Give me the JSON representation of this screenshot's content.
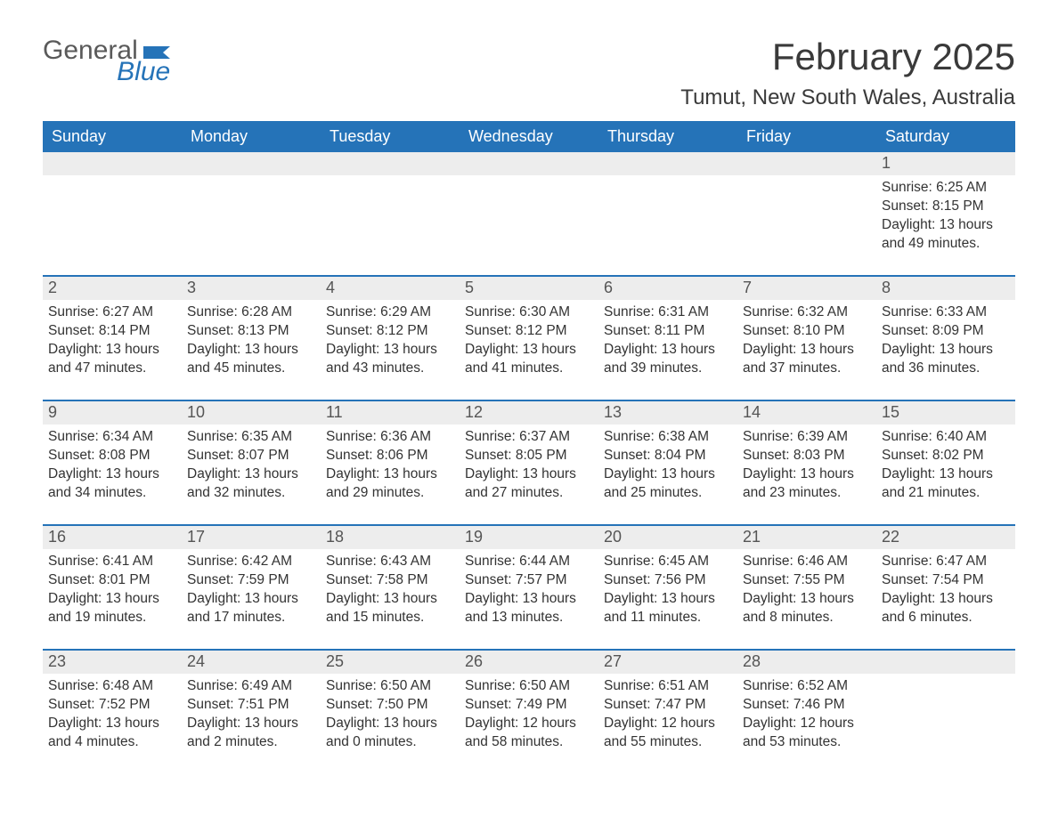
{
  "logo": {
    "text_general": "General",
    "text_blue": "Blue",
    "flag_color": "#2573b8"
  },
  "title": {
    "month": "February 2025",
    "location": "Tumut, New South Wales, Australia"
  },
  "colors": {
    "header_bg": "#2573b8",
    "header_text": "#ffffff",
    "daynum_bg": "#ededed",
    "week_divider": "#2573b8",
    "body_text": "#333333",
    "page_bg": "#ffffff"
  },
  "days_of_week": [
    "Sunday",
    "Monday",
    "Tuesday",
    "Wednesday",
    "Thursday",
    "Friday",
    "Saturday"
  ],
  "weeks": [
    [
      {
        "n": "",
        "sunrise": "",
        "sunset": "",
        "daylight": ""
      },
      {
        "n": "",
        "sunrise": "",
        "sunset": "",
        "daylight": ""
      },
      {
        "n": "",
        "sunrise": "",
        "sunset": "",
        "daylight": ""
      },
      {
        "n": "",
        "sunrise": "",
        "sunset": "",
        "daylight": ""
      },
      {
        "n": "",
        "sunrise": "",
        "sunset": "",
        "daylight": ""
      },
      {
        "n": "",
        "sunrise": "",
        "sunset": "",
        "daylight": ""
      },
      {
        "n": "1",
        "sunrise": "Sunrise: 6:25 AM",
        "sunset": "Sunset: 8:15 PM",
        "daylight": "Daylight: 13 hours and 49 minutes."
      }
    ],
    [
      {
        "n": "2",
        "sunrise": "Sunrise: 6:27 AM",
        "sunset": "Sunset: 8:14 PM",
        "daylight": "Daylight: 13 hours and 47 minutes."
      },
      {
        "n": "3",
        "sunrise": "Sunrise: 6:28 AM",
        "sunset": "Sunset: 8:13 PM",
        "daylight": "Daylight: 13 hours and 45 minutes."
      },
      {
        "n": "4",
        "sunrise": "Sunrise: 6:29 AM",
        "sunset": "Sunset: 8:12 PM",
        "daylight": "Daylight: 13 hours and 43 minutes."
      },
      {
        "n": "5",
        "sunrise": "Sunrise: 6:30 AM",
        "sunset": "Sunset: 8:12 PM",
        "daylight": "Daylight: 13 hours and 41 minutes."
      },
      {
        "n": "6",
        "sunrise": "Sunrise: 6:31 AM",
        "sunset": "Sunset: 8:11 PM",
        "daylight": "Daylight: 13 hours and 39 minutes."
      },
      {
        "n": "7",
        "sunrise": "Sunrise: 6:32 AM",
        "sunset": "Sunset: 8:10 PM",
        "daylight": "Daylight: 13 hours and 37 minutes."
      },
      {
        "n": "8",
        "sunrise": "Sunrise: 6:33 AM",
        "sunset": "Sunset: 8:09 PM",
        "daylight": "Daylight: 13 hours and 36 minutes."
      }
    ],
    [
      {
        "n": "9",
        "sunrise": "Sunrise: 6:34 AM",
        "sunset": "Sunset: 8:08 PM",
        "daylight": "Daylight: 13 hours and 34 minutes."
      },
      {
        "n": "10",
        "sunrise": "Sunrise: 6:35 AM",
        "sunset": "Sunset: 8:07 PM",
        "daylight": "Daylight: 13 hours and 32 minutes."
      },
      {
        "n": "11",
        "sunrise": "Sunrise: 6:36 AM",
        "sunset": "Sunset: 8:06 PM",
        "daylight": "Daylight: 13 hours and 29 minutes."
      },
      {
        "n": "12",
        "sunrise": "Sunrise: 6:37 AM",
        "sunset": "Sunset: 8:05 PM",
        "daylight": "Daylight: 13 hours and 27 minutes."
      },
      {
        "n": "13",
        "sunrise": "Sunrise: 6:38 AM",
        "sunset": "Sunset: 8:04 PM",
        "daylight": "Daylight: 13 hours and 25 minutes."
      },
      {
        "n": "14",
        "sunrise": "Sunrise: 6:39 AM",
        "sunset": "Sunset: 8:03 PM",
        "daylight": "Daylight: 13 hours and 23 minutes."
      },
      {
        "n": "15",
        "sunrise": "Sunrise: 6:40 AM",
        "sunset": "Sunset: 8:02 PM",
        "daylight": "Daylight: 13 hours and 21 minutes."
      }
    ],
    [
      {
        "n": "16",
        "sunrise": "Sunrise: 6:41 AM",
        "sunset": "Sunset: 8:01 PM",
        "daylight": "Daylight: 13 hours and 19 minutes."
      },
      {
        "n": "17",
        "sunrise": "Sunrise: 6:42 AM",
        "sunset": "Sunset: 7:59 PM",
        "daylight": "Daylight: 13 hours and 17 minutes."
      },
      {
        "n": "18",
        "sunrise": "Sunrise: 6:43 AM",
        "sunset": "Sunset: 7:58 PM",
        "daylight": "Daylight: 13 hours and 15 minutes."
      },
      {
        "n": "19",
        "sunrise": "Sunrise: 6:44 AM",
        "sunset": "Sunset: 7:57 PM",
        "daylight": "Daylight: 13 hours and 13 minutes."
      },
      {
        "n": "20",
        "sunrise": "Sunrise: 6:45 AM",
        "sunset": "Sunset: 7:56 PM",
        "daylight": "Daylight: 13 hours and 11 minutes."
      },
      {
        "n": "21",
        "sunrise": "Sunrise: 6:46 AM",
        "sunset": "Sunset: 7:55 PM",
        "daylight": "Daylight: 13 hours and 8 minutes."
      },
      {
        "n": "22",
        "sunrise": "Sunrise: 6:47 AM",
        "sunset": "Sunset: 7:54 PM",
        "daylight": "Daylight: 13 hours and 6 minutes."
      }
    ],
    [
      {
        "n": "23",
        "sunrise": "Sunrise: 6:48 AM",
        "sunset": "Sunset: 7:52 PM",
        "daylight": "Daylight: 13 hours and 4 minutes."
      },
      {
        "n": "24",
        "sunrise": "Sunrise: 6:49 AM",
        "sunset": "Sunset: 7:51 PM",
        "daylight": "Daylight: 13 hours and 2 minutes."
      },
      {
        "n": "25",
        "sunrise": "Sunrise: 6:50 AM",
        "sunset": "Sunset: 7:50 PM",
        "daylight": "Daylight: 13 hours and 0 minutes."
      },
      {
        "n": "26",
        "sunrise": "Sunrise: 6:50 AM",
        "sunset": "Sunset: 7:49 PM",
        "daylight": "Daylight: 12 hours and 58 minutes."
      },
      {
        "n": "27",
        "sunrise": "Sunrise: 6:51 AM",
        "sunset": "Sunset: 7:47 PM",
        "daylight": "Daylight: 12 hours and 55 minutes."
      },
      {
        "n": "28",
        "sunrise": "Sunrise: 6:52 AM",
        "sunset": "Sunset: 7:46 PM",
        "daylight": "Daylight: 12 hours and 53 minutes."
      },
      {
        "n": "",
        "sunrise": "",
        "sunset": "",
        "daylight": ""
      }
    ]
  ]
}
